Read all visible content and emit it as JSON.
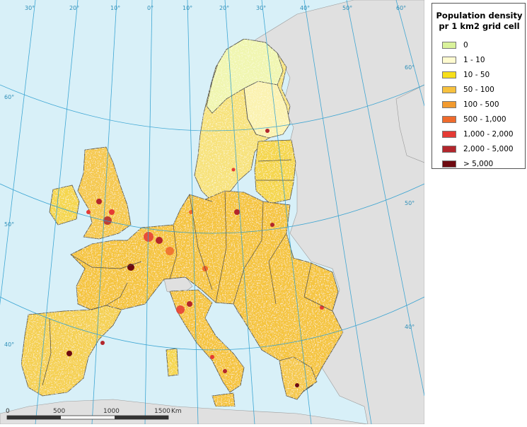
{
  "legend": {
    "title_line1": "Population density",
    "title_line2": "pr 1 km2 grid cell",
    "classes": [
      {
        "label": "0",
        "color": "#d9f29a"
      },
      {
        "label": "1 - 10",
        "color": "#fffbd0"
      },
      {
        "label": "10 - 50",
        "color": "#f7df1a"
      },
      {
        "label": "50 - 100",
        "color": "#f7c13e"
      },
      {
        "label": "100 - 500",
        "color": "#f29a2e"
      },
      {
        "label": "500 - 1,000",
        "color": "#ef6a2c"
      },
      {
        "label": "1,000 - 2,000",
        "color": "#e53a34"
      },
      {
        "label": "2,000 - 5,000",
        "color": "#b3262c"
      },
      {
        "label": "> 5,000",
        "color": "#6e0a10"
      }
    ]
  },
  "graticule": {
    "meridian_labels": [
      "30°",
      "20°",
      "10°",
      "0°",
      "10°",
      "20°",
      "30°",
      "40°",
      "50°",
      "60°"
    ],
    "parallel_labels": [
      "60°",
      "50°",
      "40°",
      "60°",
      "50°",
      "40°"
    ]
  },
  "scale_bar": {
    "ticks": [
      "0",
      "500",
      "1000",
      "1500"
    ],
    "unit": "Km"
  },
  "colors": {
    "sea": "#d8f0f8",
    "non_eu_land": "#e0e0e0",
    "graticule": "#2e9fd0",
    "border": "#4a4a4a"
  }
}
